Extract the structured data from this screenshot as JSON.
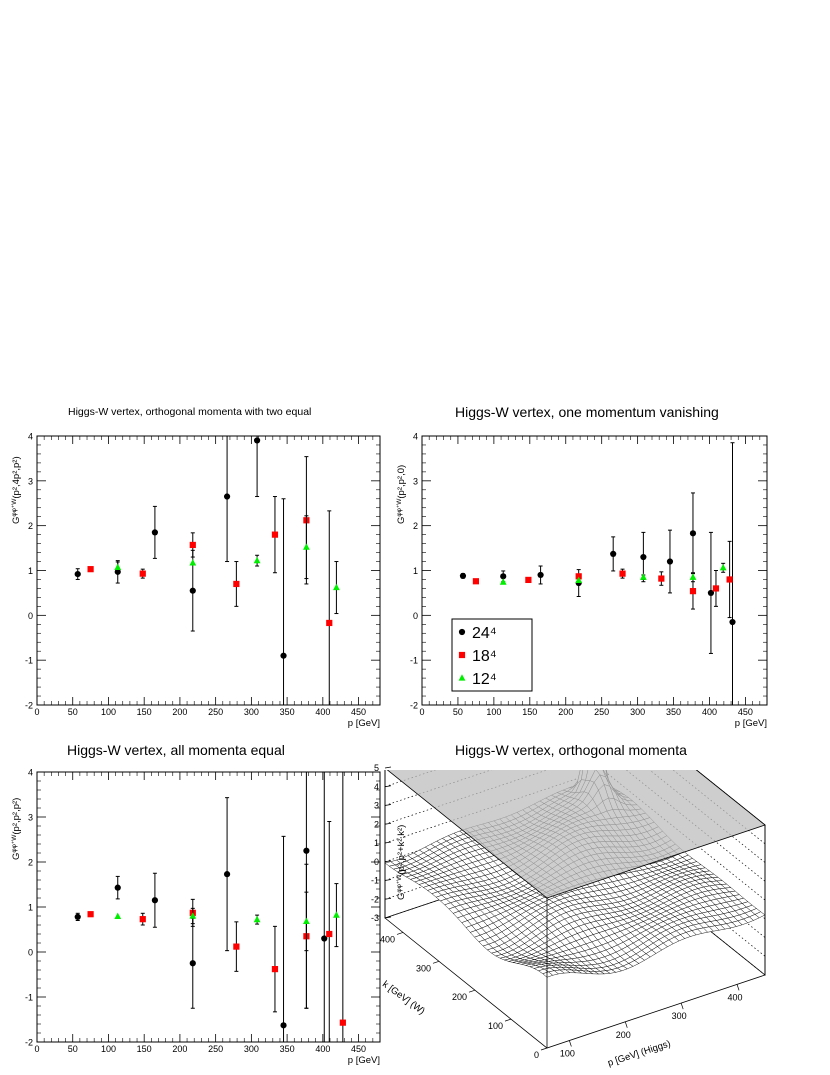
{
  "chart_data": [
    {
      "type": "scatter",
      "title": "Higgs-W vertex, orthogonal momenta with two equal",
      "xlabel": "p [GeV]",
      "ylabel": "G^{φφ⁺W}(p²,4p²,p²)",
      "ylabel_base": "G",
      "ylabel_sup": "φφ⁺W",
      "ylabel_tail": "(p²,4p²,p²)",
      "xlim": [
        0,
        480
      ],
      "ylim": [
        -2,
        4
      ],
      "xticks": [
        "0",
        "50",
        "100",
        "150",
        "200",
        "250",
        "300",
        "350",
        "400",
        "450"
      ],
      "yticks": [
        "-2",
        "-1",
        "0",
        "1",
        "2",
        "3",
        "4"
      ],
      "legend": null,
      "series": [
        {
          "label": "24⁴",
          "marker": "circle",
          "color": "#000000",
          "points": [
            [
              57,
              0.92,
              0.12
            ],
            [
              113,
              0.97,
              0.25
            ],
            [
              165,
              1.85,
              0.58
            ],
            [
              218,
              0.55,
              0.9
            ],
            [
              266,
              2.65,
              1.45
            ],
            [
              308,
              3.9,
              1.25
            ],
            [
              345,
              -0.9,
              3.5
            ]
          ]
        },
        {
          "label": "18⁴",
          "marker": "square",
          "color": "#ff0000",
          "points": [
            [
              75,
              1.03,
              0
            ],
            [
              148,
              0.93,
              0.1
            ],
            [
              218,
              1.57,
              0.27
            ],
            [
              279,
              0.7,
              0.5
            ],
            [
              333,
              1.8,
              0.85
            ],
            [
              377,
              2.12,
              1.42
            ],
            [
              409,
              -0.17,
              2.5
            ]
          ]
        },
        {
          "label": "12⁴",
          "marker": "triangle",
          "color": "#00ee00",
          "points": [
            [
              113,
              1.07,
              0.12
            ],
            [
              218,
              1.17,
              0
            ],
            [
              308,
              1.22,
              0.12
            ],
            [
              377,
              1.52,
              0.7
            ],
            [
              419,
              0.62,
              0.58
            ]
          ]
        }
      ]
    },
    {
      "type": "scatter",
      "title": "Higgs-W vertex, one momentum vanishing",
      "xlabel": "p [GeV]",
      "ylabel": "G^{φφ⁺W}(p²,p²,0)",
      "ylabel_base": "G",
      "ylabel_sup": "φφ⁺W",
      "ylabel_tail": "(p²,p²,0)",
      "xlim": [
        0,
        480
      ],
      "ylim": [
        -2,
        4
      ],
      "xticks": [
        "0",
        "50",
        "100",
        "150",
        "200",
        "250",
        "300",
        "350",
        "400",
        "450"
      ],
      "yticks": [
        "-2",
        "-1",
        "0",
        "1",
        "2",
        "3",
        "4"
      ],
      "legend": {
        "position": "bottom-left",
        "entries": [
          "24⁴",
          "18⁴",
          "12⁴"
        ]
      },
      "series": [
        {
          "label": "24⁴",
          "marker": "circle",
          "color": "#000000",
          "points": [
            [
              57,
              0.88,
              0.05
            ],
            [
              113,
              0.87,
              0.12
            ],
            [
              165,
              0.9,
              0.2
            ],
            [
              218,
              0.72,
              0.3
            ],
            [
              266,
              1.37,
              0.38
            ],
            [
              308,
              1.3,
              0.55
            ],
            [
              345,
              1.2,
              0.7
            ],
            [
              377,
              1.83,
              0.9
            ],
            [
              402,
              0.5,
              1.35
            ],
            [
              432,
              -0.15,
              4.0
            ]
          ]
        },
        {
          "label": "18⁴",
          "marker": "square",
          "color": "#ff0000",
          "points": [
            [
              75,
              0.76,
              0
            ],
            [
              148,
              0.79,
              0
            ],
            [
              218,
              0.87,
              0.05
            ],
            [
              279,
              0.93,
              0.1
            ],
            [
              333,
              0.82,
              0.15
            ],
            [
              377,
              0.54,
              0.4
            ],
            [
              409,
              0.6,
              0.4
            ],
            [
              428,
              0.8,
              0.85
            ]
          ]
        },
        {
          "label": "12⁴",
          "marker": "triangle",
          "color": "#00ee00",
          "points": [
            [
              113,
              0.74,
              0
            ],
            [
              218,
              0.78,
              0
            ],
            [
              308,
              0.85,
              0.05
            ],
            [
              377,
              0.85,
              0.1
            ],
            [
              419,
              1.06,
              0.1
            ]
          ]
        }
      ]
    },
    {
      "type": "scatter",
      "title": "Higgs-W vertex, all momenta equal",
      "xlabel": "p [GeV]",
      "ylabel": "G^{φφ⁺W}(p²,p²,p²)",
      "ylabel_base": "G",
      "ylabel_sup": "φφ⁺W",
      "ylabel_tail": "(p²,p²,p²)",
      "xlim": [
        0,
        480
      ],
      "ylim": [
        -2,
        4
      ],
      "xticks": [
        "0",
        "50",
        "100",
        "150",
        "200",
        "250",
        "300",
        "350",
        "400",
        "450"
      ],
      "yticks": [
        "-2",
        "-1",
        "0",
        "1",
        "2",
        "3",
        "4"
      ],
      "legend": null,
      "series": [
        {
          "label": "24⁴",
          "marker": "circle",
          "color": "#000000",
          "points": [
            [
              57,
              0.78,
              0.08
            ],
            [
              113,
              1.43,
              0.25
            ],
            [
              165,
              1.15,
              0.6
            ],
            [
              218,
              -0.25,
              1.0
            ],
            [
              266,
              1.73,
              1.7
            ],
            [
              345,
              -1.63,
              4.2
            ],
            [
              377,
              2.25,
              3.5
            ],
            [
              402,
              0.3,
              5.0
            ]
          ]
        },
        {
          "label": "18⁴",
          "marker": "square",
          "color": "#ff0000",
          "points": [
            [
              75,
              0.84,
              0
            ],
            [
              148,
              0.73,
              0.13
            ],
            [
              218,
              0.87,
              0.3
            ],
            [
              279,
              0.12,
              0.55
            ],
            [
              333,
              -0.38,
              0.95
            ],
            [
              377,
              0.35,
              1.6
            ],
            [
              409,
              0.4,
              2.5
            ],
            [
              428,
              -1.57,
              6.0
            ]
          ]
        },
        {
          "label": "12⁴",
          "marker": "triangle",
          "color": "#00ee00",
          "points": [
            [
              113,
              0.79,
              0
            ],
            [
              218,
              0.8,
              0.17
            ],
            [
              308,
              0.72,
              0.1
            ],
            [
              377,
              0.68,
              0.65
            ],
            [
              419,
              0.82,
              0.7
            ]
          ]
        }
      ]
    },
    {
      "type": "surface",
      "title": "Higgs-W vertex, orthogonal momenta",
      "zlabel": "G^{φφ⁺W}(p²,p²+k²,k²)",
      "zlabel_base": "G",
      "zlabel_sup": "φφ⁺W",
      "zlabel_tail": "(p²,p²+k²,k²)",
      "xlabel": "p [GeV] (Higgs)",
      "ylabel": "k [GeV] (W)",
      "zlim": [
        -3,
        5
      ],
      "xlim": [
        60,
        450
      ],
      "ylim": [
        0,
        450
      ],
      "zticks": [
        "-3",
        "-2",
        "-1",
        "0",
        "1",
        "2",
        "3",
        "4",
        "5"
      ],
      "xticks": [
        "100",
        "200",
        "300",
        "400"
      ],
      "yticks": [
        "0",
        "100",
        "200",
        "300",
        "400"
      ],
      "features": "mostly flat surface near 0-1 with a sharp peak (~5) near p≈400, k≈400"
    }
  ]
}
